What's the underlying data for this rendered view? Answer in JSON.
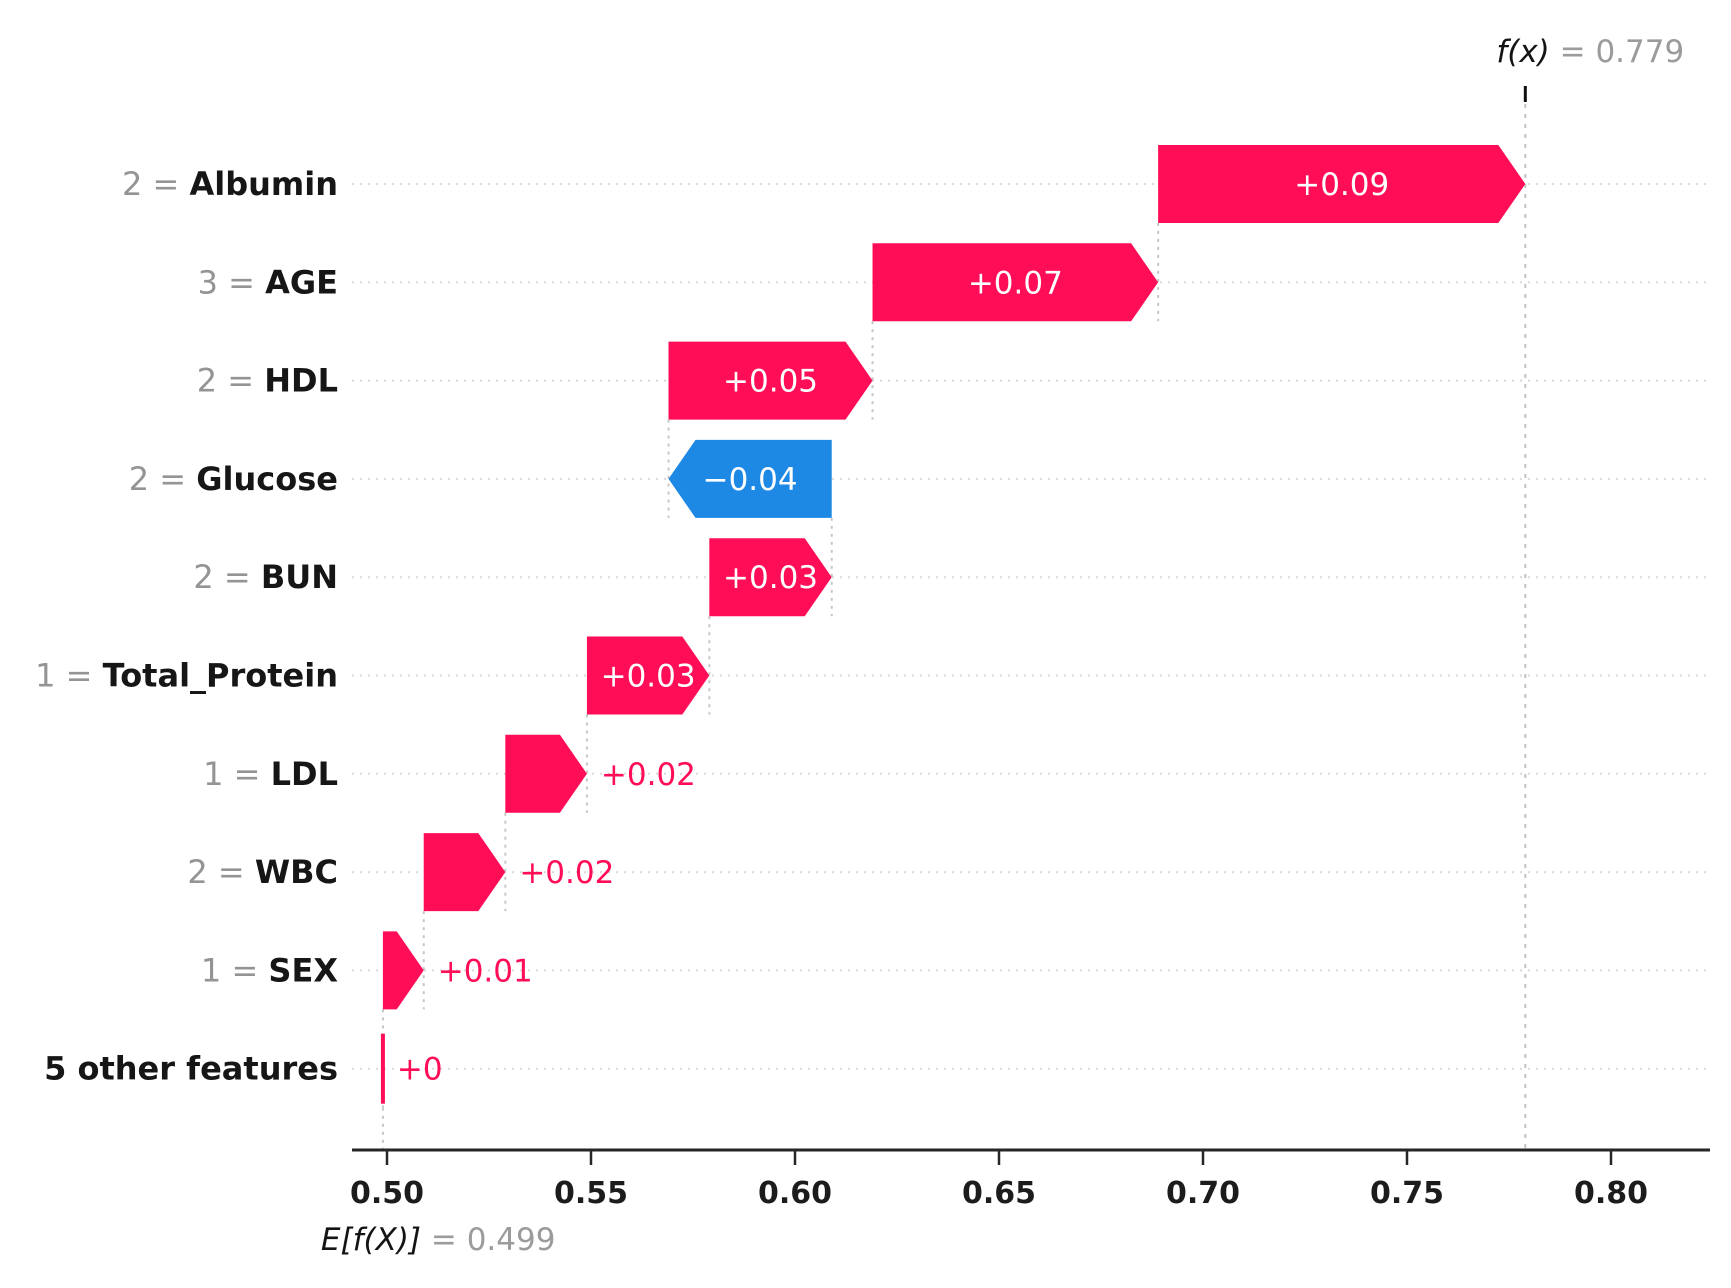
{
  "figure": {
    "background": "#ffffff",
    "fx_annotation": {
      "name": "f(x)",
      "rest": " = 0.779"
    },
    "base_annotation": {
      "name": "E[f(X)]",
      "rest": " = 0.499"
    }
  },
  "chart_data": {
    "type": "waterfall",
    "title": "",
    "xlabel": "",
    "ylabel": "",
    "legend": "none",
    "grid": "dotted horizontal row guides",
    "base_value": 0.499,
    "final_value": 0.779,
    "xlim": [
      0.4915,
      0.824
    ],
    "x_ticks": [
      {
        "label": "0.50",
        "value": 0.5
      },
      {
        "label": "0.55",
        "value": 0.55
      },
      {
        "label": "0.60",
        "value": 0.6
      },
      {
        "label": "0.65",
        "value": 0.65
      },
      {
        "label": "0.70",
        "value": 0.7
      },
      {
        "label": "0.75",
        "value": 0.75
      },
      {
        "label": "0.80",
        "value": 0.8
      }
    ],
    "colors": {
      "positive": "#ff0d57",
      "negative": "#1e88e5",
      "feature_name_text": "#161616",
      "feature_value_text": "#949494",
      "annotation_gray": "#9b9b9b"
    },
    "rows": [
      {
        "prefix": "2",
        "feature": "Albumin",
        "label": "+0.09",
        "value": 0.09,
        "from": 0.689,
        "to": 0.779
      },
      {
        "prefix": "3",
        "feature": "AGE",
        "label": "+0.07",
        "value": 0.07,
        "from": 0.619,
        "to": 0.689
      },
      {
        "prefix": "2",
        "feature": "HDL",
        "label": "+0.05",
        "value": 0.05,
        "from": 0.569,
        "to": 0.619
      },
      {
        "prefix": "2",
        "feature": "Glucose",
        "label": "−0.04",
        "value": -0.04,
        "from": 0.609,
        "to": 0.569
      },
      {
        "prefix": "2",
        "feature": "BUN",
        "label": "+0.03",
        "value": 0.03,
        "from": 0.579,
        "to": 0.609
      },
      {
        "prefix": "1",
        "feature": "Total_Protein",
        "label": "+0.03",
        "value": 0.03,
        "from": 0.549,
        "to": 0.579
      },
      {
        "prefix": "1",
        "feature": "LDL",
        "label": "+0.02",
        "value": 0.02,
        "from": 0.529,
        "to": 0.549
      },
      {
        "prefix": "2",
        "feature": "WBC",
        "label": "+0.02",
        "value": 0.02,
        "from": 0.509,
        "to": 0.529
      },
      {
        "prefix": "1",
        "feature": "SEX",
        "label": "+0.01",
        "value": 0.01,
        "from": 0.499,
        "to": 0.509
      },
      {
        "prefix": "",
        "feature": "5 other features",
        "label": "+0",
        "value": 0.0,
        "from": 0.499,
        "to": 0.499
      }
    ]
  }
}
